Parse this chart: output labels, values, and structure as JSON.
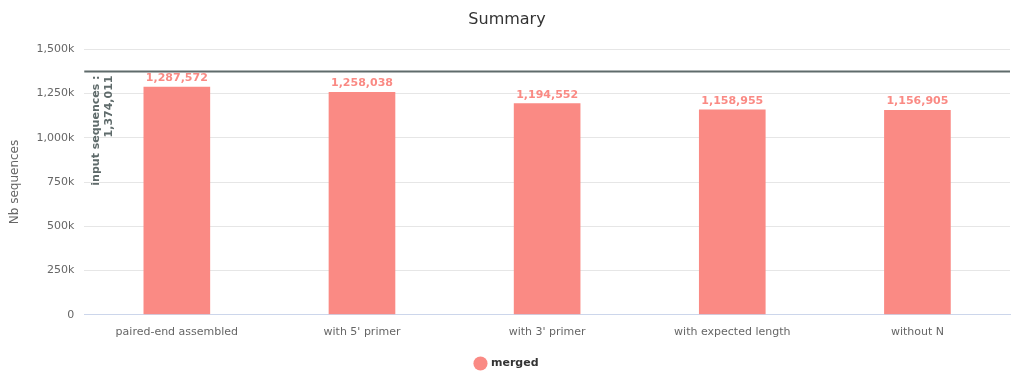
{
  "chart_data": {
    "type": "bar",
    "title": "Summary",
    "ylabel": "Nb sequences",
    "categories": [
      "paired-end assembled",
      "with 5' primer",
      "with 3' primer",
      "with expected length",
      "without N"
    ],
    "series": [
      {
        "name": "merged",
        "color": "#fa8a84",
        "values": [
          1287572,
          1258038,
          1194552,
          1158955,
          1156905
        ],
        "value_labels": [
          "1,287,572",
          "1,258,038",
          "1,194,552",
          "1,158,955",
          "1,156,905"
        ]
      }
    ],
    "ylim": [
      0,
      1500000
    ],
    "yticks": [
      {
        "value": 0,
        "label": "0"
      },
      {
        "value": 250000,
        "label": "250k"
      },
      {
        "value": 500000,
        "label": "500k"
      },
      {
        "value": 750000,
        "label": "750k"
      },
      {
        "value": 1000000,
        "label": "1,000k"
      },
      {
        "value": 1250000,
        "label": "1,250k"
      },
      {
        "value": 1500000,
        "label": "1,500k"
      }
    ],
    "ref_lines": [
      {
        "axis": "y",
        "value": 1374011,
        "label": "input sequences : 1,374,011",
        "color": "#5f6b6b"
      }
    ],
    "grid": "y",
    "legend": "bottom",
    "marker": "circle"
  }
}
